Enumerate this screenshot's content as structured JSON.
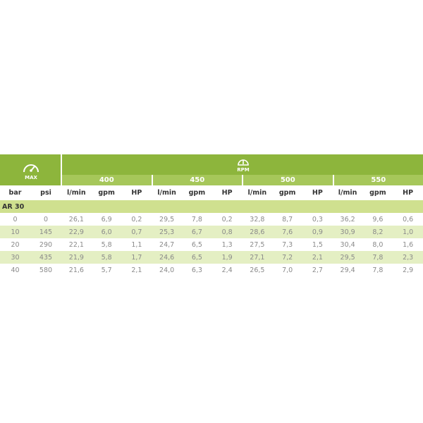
{
  "colors": {
    "header": "#8db53c",
    "subheader": "#a6c75a",
    "group": "#cfe08f",
    "alt_row": "#e4efc3"
  },
  "icons": {
    "pressure": "pressure-gauge-icon",
    "rpm": "rpm-gauge-icon"
  },
  "icon_labels": {
    "pressure": "MAX",
    "rpm": "RPM"
  },
  "rpm_values": [
    "400",
    "450",
    "500",
    "550"
  ],
  "columns": [
    "bar",
    "psi",
    "l/min",
    "gpm",
    "HP",
    "l/min",
    "gpm",
    "HP",
    "l/min",
    "gpm",
    "HP",
    "l/min",
    "gpm",
    "HP"
  ],
  "group": "AR 30",
  "rows": [
    [
      "0",
      "0",
      "26,1",
      "6,9",
      "0,2",
      "29,5",
      "7,8",
      "0,2",
      "32,8",
      "8,7",
      "0,3",
      "36,2",
      "9,6",
      "0,6"
    ],
    [
      "10",
      "145",
      "22,9",
      "6,0",
      "0,7",
      "25,3",
      "6,7",
      "0,8",
      "28,6",
      "7,6",
      "0,9",
      "30,9",
      "8,2",
      "1,0"
    ],
    [
      "20",
      "290",
      "22,1",
      "5,8",
      "1,1",
      "24,7",
      "6,5",
      "1,3",
      "27,5",
      "7,3",
      "1,5",
      "30,4",
      "8,0",
      "1,6"
    ],
    [
      "30",
      "435",
      "21,9",
      "5,8",
      "1,7",
      "24,6",
      "6,5",
      "1,9",
      "27,1",
      "7,2",
      "2,1",
      "29,5",
      "7,8",
      "2,3"
    ],
    [
      "40",
      "580",
      "21,6",
      "5,7",
      "2,1",
      "24,0",
      "6,3",
      "2,4",
      "26,5",
      "7,0",
      "2,7",
      "29,4",
      "7,8",
      "2,9"
    ]
  ]
}
